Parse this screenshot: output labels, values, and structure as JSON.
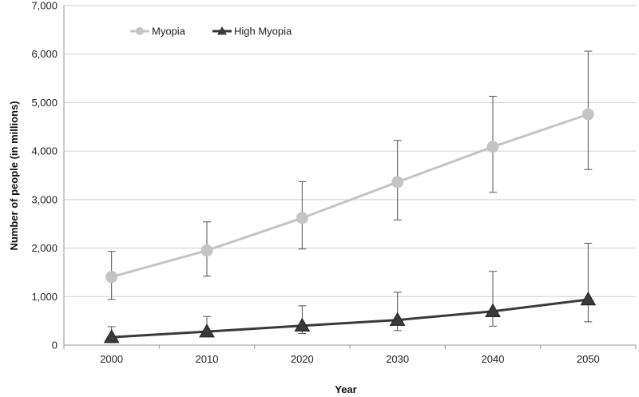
{
  "chart_data": {
    "type": "line",
    "title": "",
    "xlabel": "Year",
    "ylabel": "Number of people (in millions)",
    "categories": [
      "2000",
      "2010",
      "2020",
      "2030",
      "2040",
      "2050"
    ],
    "ylim": [
      0,
      7000
    ],
    "yticks": [
      0,
      1000,
      2000,
      3000,
      4000,
      5000,
      6000,
      7000
    ],
    "ytick_labels": [
      "0",
      "1,000",
      "2,000",
      "3,000",
      "4,000",
      "5,000",
      "6,000",
      "7,000"
    ],
    "grid": "horizontal",
    "legend_position": "top-left",
    "series": [
      {
        "name": "Myopia",
        "color": "#c4c4c4",
        "marker": "circle",
        "values": [
          1406,
          1950,
          2620,
          3361,
          4089,
          4758
        ],
        "error_low": [
          940,
          1420,
          1980,
          2580,
          3150,
          3620
        ],
        "error_high": [
          1930,
          2540,
          3370,
          4220,
          5130,
          6060
        ]
      },
      {
        "name": "High Myopia",
        "color": "#3a3a3a",
        "marker": "triangle",
        "values": [
          163,
          277,
          399,
          517,
          696,
          938
        ],
        "error_low": [
          50,
          180,
          240,
          300,
          390,
          480
        ],
        "error_high": [
          380,
          590,
          810,
          1090,
          1520,
          2100
        ]
      }
    ]
  }
}
